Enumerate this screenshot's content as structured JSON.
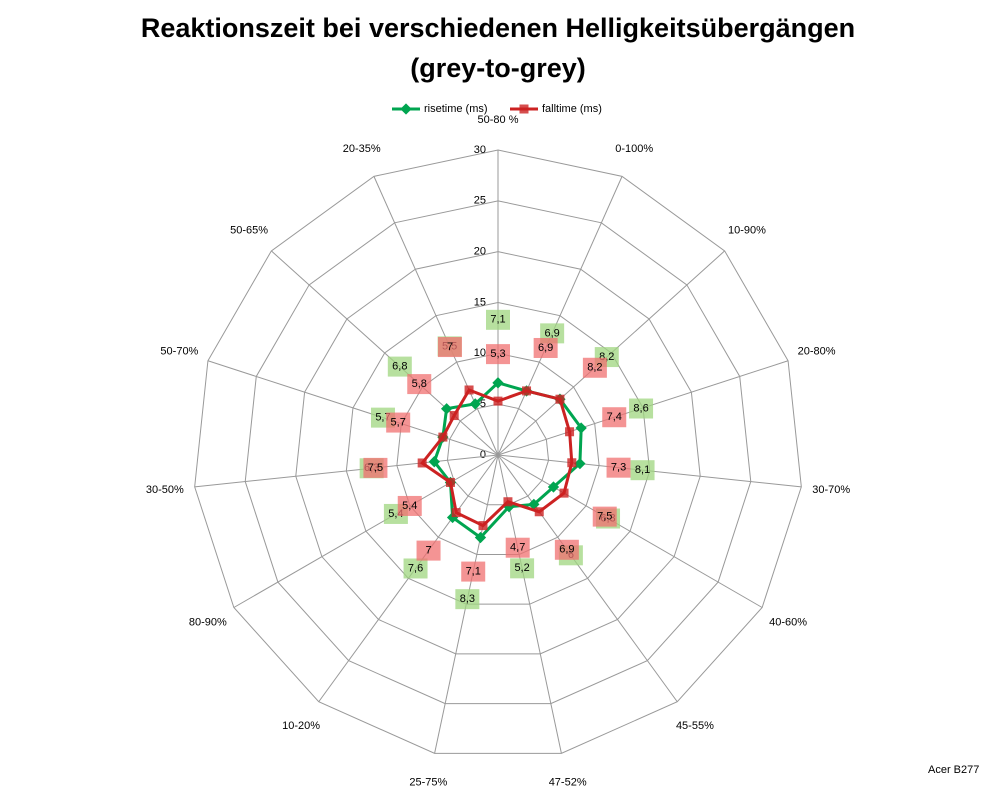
{
  "chart_data": {
    "type": "radar",
    "title": [
      "Reaktionszeit bei verschiedenen Helligkeitsübergängen",
      "(grey-to-grey)"
    ],
    "categories": [
      "50-80 %",
      "0-100%",
      "10-90%",
      "20-80%",
      "30-70%",
      "40-60%",
      "45-55%",
      "47-52%",
      "25-75%",
      "10-20%",
      "80-90%",
      "30-50%",
      "50-70%",
      "50-65%",
      "20-35%"
    ],
    "series": [
      {
        "name": "risetime (ms)",
        "color": "#00a550",
        "label_color": "#9fd67f",
        "values": [
          7.1,
          6.9,
          8.2,
          8.6,
          8.1,
          6.3,
          6,
          5.2,
          8.3,
          7.6,
          5.4,
          6.3,
          5.7,
          6.8,
          5.5
        ],
        "value_labels": [
          "7,1",
          "6,9",
          "8,2",
          "8,6",
          "8,1",
          "6,3",
          "6",
          "5,2",
          "8,3",
          "7,6",
          "5,4",
          "6,3",
          "5,7",
          "6,8",
          "5,5"
        ]
      },
      {
        "name": "falltime (ms)",
        "color": "#cc2222",
        "label_color": "#f07070",
        "values": [
          5.3,
          6.9,
          8.2,
          7.4,
          7.3,
          7.5,
          6.9,
          4.7,
          7.1,
          7,
          5.4,
          7.5,
          5.7,
          5.8,
          7
        ],
        "value_labels": [
          "5,3",
          "6,9",
          "8,2",
          "7,4",
          "7,3",
          "7,5",
          "6,9",
          "4,7",
          "7,1",
          "7",
          "5,4",
          "7,5",
          "5,7",
          "5,8",
          "7"
        ]
      }
    ],
    "rlim": [
      0,
      30
    ],
    "rticks": [
      0,
      5,
      10,
      15,
      20,
      25,
      30
    ],
    "legend": "top",
    "footer": "Acer B277"
  }
}
